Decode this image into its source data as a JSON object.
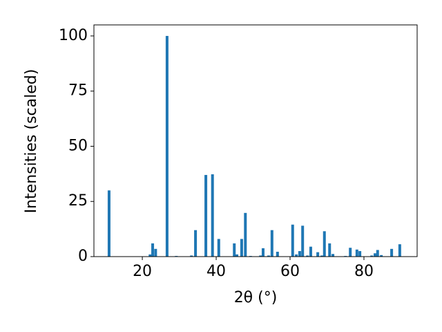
{
  "chart_data": {
    "type": "bar",
    "x_label": "2θ (°)",
    "y_label": "Intensities (scaled)",
    "x": [
      11.0,
      22.1,
      22.8,
      23.6,
      26.7,
      29.2,
      33.3,
      34.4,
      37.2,
      39.0,
      40.7,
      44.9,
      45.6,
      46.9,
      47.9,
      49.3,
      52.0,
      52.7,
      54.2,
      55.1,
      56.6,
      60.7,
      61.7,
      62.6,
      63.4,
      64.7,
      65.6,
      67.5,
      68.6,
      69.3,
      70.7,
      71.6,
      75.0,
      76.3,
      78.1,
      78.9,
      82.1,
      83.0,
      83.7,
      84.7,
      87.5,
      89.7
    ],
    "values": [
      30,
      1,
      6,
      3.5,
      100,
      0.3,
      0.5,
      12,
      37,
      37.3,
      8,
      6,
      1,
      8,
      19.8,
      0.3,
      0.5,
      3.8,
      0.5,
      12,
      2.2,
      14.5,
      1,
      2.5,
      14,
      0.5,
      4.5,
      2,
      0.5,
      11.5,
      6,
      1.2,
      0.3,
      4,
      3.2,
      2.5,
      0.5,
      1.5,
      3,
      0.7,
      3.5,
      5.6
    ],
    "color": "#1f77b4",
    "xlim": [
      6.9,
      94.4
    ],
    "xticks": [
      20,
      40,
      60,
      80
    ],
    "ylim": [
      0,
      105
    ],
    "yticks": [
      0,
      25,
      50,
      75,
      100
    ]
  }
}
